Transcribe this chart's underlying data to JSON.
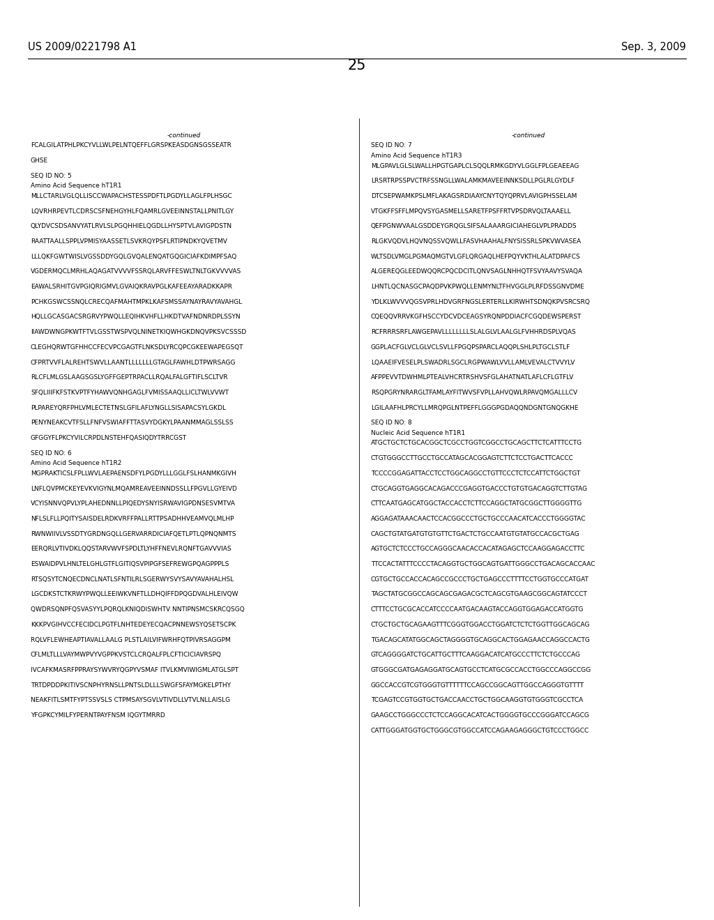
{
  "bg_color": "#ffffff",
  "header_left": "US 2009/0221798 A1",
  "header_right": "Sep. 3, 2009",
  "page_number": "25",
  "content_font_size": 6.5,
  "header_font_size": 10.5,
  "page_num_font_size": 15,
  "col1_lines": [
    {
      "-continued": true
    },
    {
      "text": "FCALGILATPHLPKCYVLLWLPELNTQEFFLGRSPKEASDGNSGSSEATR"
    },
    {
      "blank": true
    },
    {
      "text": "GHSE"
    },
    {
      "blank": true
    },
    {
      "text": "SEQ ID NO: 5"
    },
    {
      "text": "Amino Acid Sequence hT1R1"
    },
    {
      "text": "MLLCTARLVGLQLLISCCWAPACHSTESSPDFTLPGDYLLAGLFPLHSGC"
    },
    {
      "blank": true
    },
    {
      "text": "LQVRHRPEVTLCDRSCSFNEHGYHLFQAMRLGVEEINNSTALLPNITLGY"
    },
    {
      "blank": true
    },
    {
      "text": "QLYDVCSDSANVYATLRVLSLPGQHHIELQGDLLHYSPTVLAVIGPDSTN"
    },
    {
      "blank": true
    },
    {
      "text": "RAATTAALLSPPLVPMISYAASSETLSVKRQYPSFLRTIPNDKYQVETMV"
    },
    {
      "blank": true
    },
    {
      "text": "LLLQKFGWTWISLVGSSDDYGQLGVQALENQATGQGICIAFKDIMPFSAQ"
    },
    {
      "blank": true
    },
    {
      "text": "VGDERMQCLMRHLAQAGATVVVVFSSRQLARVFFESWLTNLTGKVVVVAS"
    },
    {
      "blank": true
    },
    {
      "text": "EAWALSRHITGVPGIQRIGMVLGVAIQKRAVPGLKAFEEAYARADKKAPR"
    },
    {
      "blank": true
    },
    {
      "text": "PCHKGSWCSSNQLCRECQAFMAHTMPKLKAFSMSSAYNAYRAVYAVAHGL"
    },
    {
      "blank": true
    },
    {
      "text": "HQLLGCASGACSRGRVYPWQLLEQIHKVHFLLHKDTVAFNDNRDPLSSYN"
    },
    {
      "blank": true
    },
    {
      "text": "IIAWDWNGPKWTFTVLGSSTWSPVQLNINETKIQWHGKDNQVPKSVCSSSD"
    },
    {
      "blank": true
    },
    {
      "text": "CLEGHQRWTGFHHCCFECVPCGAGTFLNKSDLYRCQPCGKEEWAPEGSQT"
    },
    {
      "blank": true
    },
    {
      "text": "CFPRTVVFLALREHTSWVLLAANTLLLLLLLGTAGLFAWHLDTPWRSAGG"
    },
    {
      "blank": true
    },
    {
      "text": "RLCFLMLGSLAAGSGSLYGFFGEPTRPACLLRQALFALGFTIFLSCLTVR"
    },
    {
      "blank": true
    },
    {
      "text": "SFQLIIIFKFSTKVPTFYHAWVQNHGAGLFVMISSAAQLLICLTWLVVWT"
    },
    {
      "blank": true
    },
    {
      "text": "PLPAREYQRFPHLVMLECTETNSLGFILAFLYNGLLSISAPACSYLGKDL"
    },
    {
      "blank": true
    },
    {
      "text": "PENYNEAKCVTFSLLFNFVSWIAFFTTASVYDGKYLPAANMMAGLSSLSS"
    },
    {
      "blank": true
    },
    {
      "text": "GFGGYFLPKCYVILCRPDLNSTEHFQASIQDYTRRCGST"
    },
    {
      "blank": true
    },
    {
      "text": "SEQ ID NO: 6"
    },
    {
      "text": "Amino Acid Sequence hT1R2"
    },
    {
      "text": "MGPRAKTICSLFPLLWVLAEPAENSDFYLPGDYLLLGGLFSLHANMKGIVH"
    },
    {
      "blank": true
    },
    {
      "text": "LNFLQVPMCKEYEVKVIGYNLMQAMREAVEEINNDSSLLFPGVLLGYEIVD"
    },
    {
      "blank": true
    },
    {
      "text": "VCYISNNVQPVLYPLAHEDNNLLPIQEDYSNYISRWAVIGPDNSESVMTVA"
    },
    {
      "blank": true
    },
    {
      "text": "NFLSLFLLPQITYSAISDELRDKVRFFPALLRTTPSADHHVEAMVQLMLHP"
    },
    {
      "blank": true
    },
    {
      "text": "RWNWIIVLVSSDTYGRDNGQLLGERVARRDICIAFQETLPTLQPNQNMTS"
    },
    {
      "blank": true
    },
    {
      "text": "EERQRLVTIVDKLQQSTARVWVFSPDLTLYHFFNEVLRQNFTGAVVVIAS"
    },
    {
      "blank": true
    },
    {
      "text": "ESWAIDPVLHNLTELGHLGTFLGITIQSVPIPGFSEFREWGPQAGPPPLS"
    },
    {
      "blank": true
    },
    {
      "text": "RTSQSYTCNQECDNCLNATLSFNTILRLSGERWYSVYSAVYAVAHALHSL"
    },
    {
      "blank": true
    },
    {
      "text": "LGCDKSTCTKRWYPWQLLEEIWKVNFTLLDHQIFFDPQGDVALHLEIVQW"
    },
    {
      "blank": true
    },
    {
      "text": "QWDRSQNPFQSVASYYLPQRQLKNIQDISWHTV NNTIPNSMCSKRCQSGQ"
    },
    {
      "blank": true
    },
    {
      "text": "KKKPVGIHVCCFECIDCLPGTFLNHTEDEYECQACPNNEWSYQSETSCPK"
    },
    {
      "blank": true
    },
    {
      "text": "RQLVFLEWHEAPTIAVALLAALG PLSTLAILVIFWRHFQTPIVRSAGGPM"
    },
    {
      "blank": true
    },
    {
      "text": "CFLMLTLLLVAYMWPVYVGPPKVSTCLCRQALFPLCFTICICIAVRSPQ"
    },
    {
      "blank": true
    },
    {
      "text": "IVCAFKMASRFPPRAYSYWVRYQGPYVSMAF ITVLKMVIWIGMLATGLSPT"
    },
    {
      "blank": true
    },
    {
      "text": "TRTDPDDPKITIVSCNPHYRNSLLPNTSLDLLLSWGFSFAYMGKELPTHY"
    },
    {
      "blank": true
    },
    {
      "text": "NEAKFITLSMTFYPTSSVSLS CTPMSAYSGVLVTIVDLLVTVLNLLAISLG"
    },
    {
      "blank": true
    },
    {
      "text": "YFGPKCYMILFYPERNTPAYFNSM IQGYTMRRD"
    }
  ],
  "col2_lines": [
    {
      "-continued": true
    },
    {
      "text": "SEQ ID NO: 7"
    },
    {
      "text": "Amino Acid Sequence hT1R3"
    },
    {
      "text": "MLGPAVLGLSLWALLHPGTGAPLCLSQQLRMKGDYVLGGLFPLGEAEEAG"
    },
    {
      "blank": true
    },
    {
      "text": "LRSRTRPSSPVCTRFSSNGLLWALAMKMAVEEINNKSDLLPGLRLGYDLF"
    },
    {
      "blank": true
    },
    {
      "text": "DTCSEPWAMKPSLMFLAKAGSRDIAAYCNYTQYQPRVLAVIGPHSSELAM"
    },
    {
      "blank": true
    },
    {
      "text": "VTGKFFSFFLMPQVSYGASMELLSARETFPSFFRTVPSDRVQLTAAAELL"
    },
    {
      "blank": true
    },
    {
      "text": "QEFPGNWVAALGSDDEYGRQGLSIFSALAAARGICIAHEGLVPLPRADDS"
    },
    {
      "blank": true
    },
    {
      "text": "RLGKVQDVLHQVNQSSVQWLLFASVHAAHALFNYSISSRLSPKVWVASEA"
    },
    {
      "blank": true
    },
    {
      "text": "WLTSDLVMGLPGMAQMGTVLGFLQRGAQLHEFPQYVKTHLALATDPAFCS"
    },
    {
      "blank": true
    },
    {
      "text": "ALGEREQGLEEDWQQRCPQCDCITLQNVSAGLNHHQTFSVYAAVYSVAQA"
    },
    {
      "blank": true
    },
    {
      "text": "LHNTLQCNASGCPAQDPVKPWQLLENMYNLTFHVGGLPLRFDSSGNVDME"
    },
    {
      "blank": true
    },
    {
      "text": "YDLKLWVVVQGSVPRLHDVGRFNGSLERTERLLKIRWHTSDNQKPVSRCSRQ"
    },
    {
      "blank": true
    },
    {
      "text": "CQEQQVRRVKGFHSCCYDCVDCEAGSYRQNPDDIACFCGQDEWSPERST"
    },
    {
      "blank": true
    },
    {
      "text": "RCFRRRSRFLAWGEPAVLLLLLLLLSLALGLVLAALGLFVHHRDSPLVQAS"
    },
    {
      "blank": true
    },
    {
      "text": "GGPLACFGLVCLGLVCLSVLLFPGQPSPARCLAQQPLSHLPLTGCLSTLF"
    },
    {
      "blank": true
    },
    {
      "text": "LQAAEIFVESELPLSWADRLSGCLRGPWAWLVVLLAMLVEVALCTVVYLV"
    },
    {
      "blank": true
    },
    {
      "text": "AFPPEVVTDWHMLPTEALVHCRTRSHVSFGLAHATNATLAFLCFLGTFLV"
    },
    {
      "blank": true
    },
    {
      "text": "RSQPGRYNRARGLTFAMLAYFITWVSFVPLLAHVQWLRPAVQMGALLLCV"
    },
    {
      "blank": true
    },
    {
      "text": "LGILAAFHLPRCYLLMRQPGLNTPEFFLGGGPGDAQQNDGNTGNQGKHE"
    },
    {
      "blank": true
    },
    {
      "text": "SEQ ID NO: 8"
    },
    {
      "text": "Nucleic Acid Sequence hT1R1"
    },
    {
      "text": "ATGCTGCTCTGCACGGCTCGCCTGGTCGGCCTGCAGCTTCTCATTTCCTG"
    },
    {
      "blank": true
    },
    {
      "text": "CTGTGGGCCTTGCCTGCCATAGCACGGAGTCTTCTCCTGACTTCACCC"
    },
    {
      "blank": true
    },
    {
      "text": "TCCCCGGAGATTACCTCCTGGCAGGCCTGTTCCCTCTCCATTCTGGCTGT"
    },
    {
      "blank": true
    },
    {
      "text": "CTGCAGGTGAGGCACAGACCCGAGGTGACCCTGTGTGACAGGTCTTGTAG"
    },
    {
      "blank": true
    },
    {
      "text": "CTTCAATGAGCATGGCTACCACCTCTTCCAGGCTATGCGGCTTGGGGTTG"
    },
    {
      "blank": true
    },
    {
      "text": "AGGAGATAAACAACTCCACGGCCCTGCTGCCCAACATCACCCTGGGGTAC"
    },
    {
      "blank": true
    },
    {
      "text": "CAGCTGTATGATGTGTGTTCTGACTCTGCCAATGTGTATGCCACGCTGAG"
    },
    {
      "blank": true
    },
    {
      "text": "AGTGCTCTCCCTGCCAGGGCAACACCACATAGAGCTCCAAGGAGACCTTC"
    },
    {
      "blank": true
    },
    {
      "text": "TTCCACTATTTCCCCTACAGGTGCTGGCAGTGATTGGGCCTGACAGCACCAAC"
    },
    {
      "blank": true
    },
    {
      "text": "CGTGCTGCCACCACAGCCGCCCTGCTGAGCCCTTTTCCTGGTGCCCATGAT"
    },
    {
      "blank": true
    },
    {
      "text": "TAGCTATGCGGCCAGCAGCGAGACGCTCAGCGTGAAGCGGCAGTATCCCT"
    },
    {
      "blank": true
    },
    {
      "text": "CTTTCCTGCGCACCATCCCCAATGACAAGTACCAGGTGGAGACCATGGTG"
    },
    {
      "blank": true
    },
    {
      "text": "CTGCTGCTGCAGAAGTTTCGGGTGGACCTGGATCTCTCTGGTTGGCAGCAG"
    },
    {
      "blank": true
    },
    {
      "text": "TGACAGCATATGGCAGCTAGGGGTGCAGGCACTGGAGAACCAGGCCACTG"
    },
    {
      "blank": true
    },
    {
      "text": "GTCAGGGGATCTGCATTGCTTTCAAGGACATCATGCCCTTCTCTGCCCAG"
    },
    {
      "blank": true
    },
    {
      "text": "GTGGGCGATGAGAGGATGCAGTGCCTCATGCGCCACCTGGCCCAGGCCGG"
    },
    {
      "blank": true
    },
    {
      "text": "GGCCACCGTCGTGGGTGTTTTTTCCAGCCGGCAGTTGGCCAGGGTGTTTT"
    },
    {
      "blank": true
    },
    {
      "text": "TCGAGTCCGTGGTGCTGACCAACCTGCTGGCAAGGTGTGGGTCGCCTCA"
    },
    {
      "blank": true
    },
    {
      "text": "GAAGCCTGGGCCCTCTCCAGGCACATCACTGGGGTGCCCGGGATCCAGCG"
    },
    {
      "blank": true
    },
    {
      "text": "CATTGGGATGGTGCTGGGCGTGGCCATCCAGAAGAGGGCTGTCCCTGGCC"
    }
  ]
}
